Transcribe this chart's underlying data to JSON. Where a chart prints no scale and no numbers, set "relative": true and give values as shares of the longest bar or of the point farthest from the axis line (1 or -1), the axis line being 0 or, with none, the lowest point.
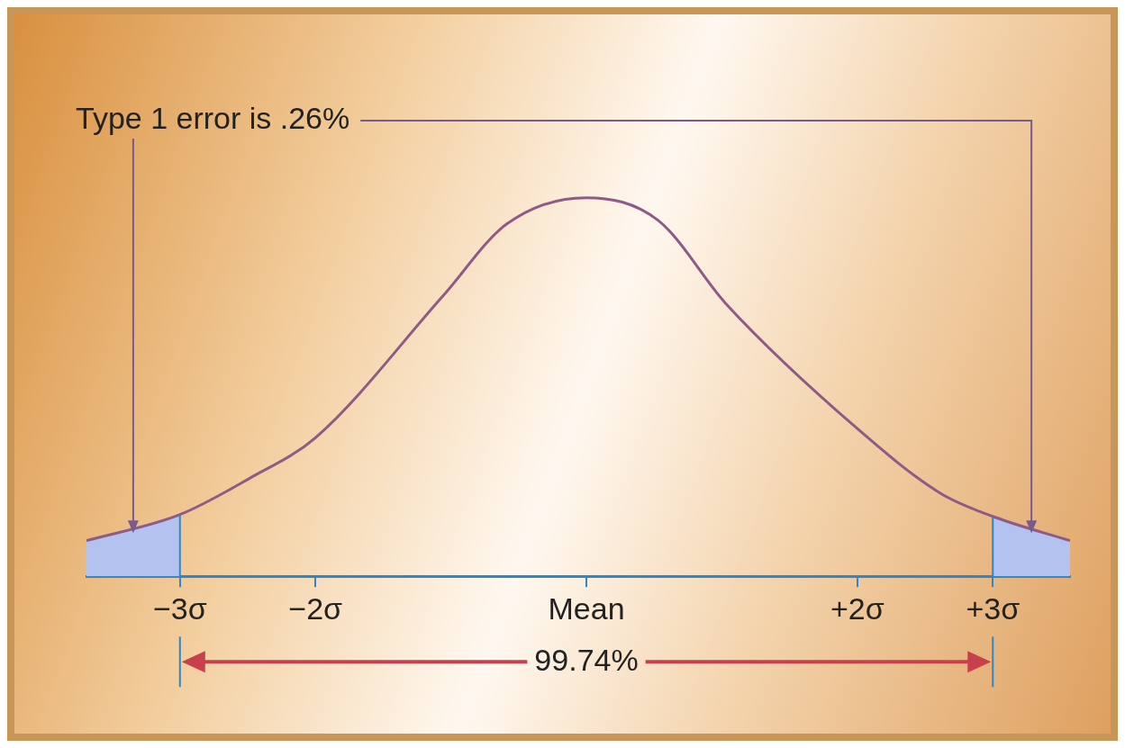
{
  "chart_data": {
    "type": "line",
    "relative": true,
    "x": [
      -3.69,
      -3.0,
      -2.48,
      -2.0,
      -1.06,
      -0.59,
      0,
      0.53,
      1.03,
      2.0,
      2.61,
      3.0,
      3.57
    ],
    "series": [
      {
        "color": "#8e5a88",
        "values": [
          0.094,
          0.163,
          0.26,
          0.366,
          0.74,
          0.93,
          1,
          0.94,
          0.72,
          0.39,
          0.22,
          0.158,
          0.094
        ]
      },
      {
        "type": "area",
        "color": "#b3c2ee",
        "x": [
          -3.69,
          -3.0
        ],
        "values": [
          0.094,
          0.163
        ]
      },
      {
        "type": "area",
        "color": "#b3c2ee",
        "x": [
          3.0,
          3.57
        ],
        "values": [
          0.158,
          0.094
        ]
      }
    ],
    "xlim": [
      -3.69,
      3.57
    ],
    "xticks": [
      {
        "value": -3,
        "label": "−3σ"
      },
      {
        "value": -2,
        "label": "−2σ"
      },
      {
        "value": 0,
        "label": "Mean"
      },
      {
        "value": 2,
        "label": "+2σ"
      },
      {
        "value": 3,
        "label": "+3σ"
      }
    ],
    "ref_lines": [
      {
        "axis": "x",
        "value": -3,
        "color": "#2f86c9"
      },
      {
        "axis": "x",
        "value": 3,
        "color": "#2f86c9"
      }
    ],
    "annotations": [
      "Type 1 error is .26%",
      "99.74%"
    ],
    "grid": false,
    "legend": false,
    "marker": "none",
    "line_style": "solid"
  }
}
